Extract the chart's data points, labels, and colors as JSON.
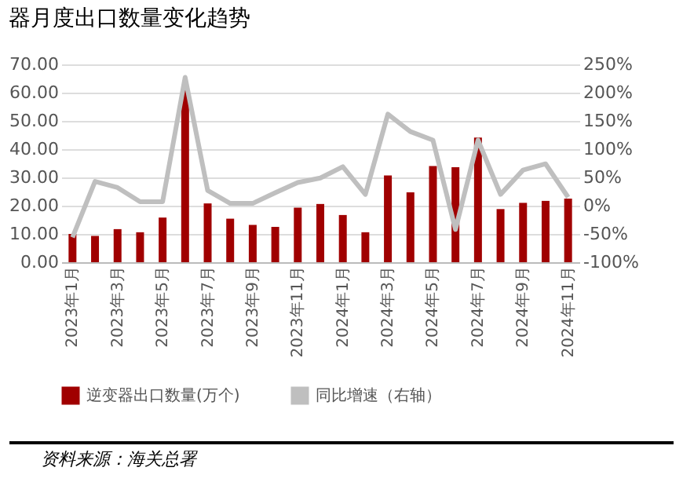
{
  "chart_data": {
    "type": "bar",
    "title": "器月度出口数量变化趋势",
    "categories": [
      "2023年1月",
      null,
      "2023年3月",
      null,
      "2023年5月",
      null,
      "2023年7月",
      null,
      "2023年9月",
      null,
      "2023年11月",
      null,
      "2024年1月",
      null,
      "2024年3月",
      null,
      "2024年5月",
      null,
      "2024年7月",
      null,
      "2024年9月",
      null,
      "2024年11月"
    ],
    "series": [
      {
        "name": "逆变器出口数量(万个)",
        "color": "#a00000",
        "values": [
          10.0,
          9.3,
          11.7,
          10.6,
          15.8,
          61,
          20.8,
          15.4,
          13.2,
          12.5,
          19.3,
          20.6,
          16.7,
          10.6,
          30.7,
          24.7,
          34.0,
          33.6,
          44.1,
          18.8,
          21.0,
          21.7,
          22.5
        ]
      },
      {
        "name": "同比增速（右轴）",
        "type": "line",
        "axis": "y2",
        "color": "#bfbfbf",
        "values": [
          -56,
          43,
          32,
          7,
          7,
          227,
          27,
          4,
          4,
          23,
          41,
          49,
          69,
          20,
          162,
          131,
          116,
          -42,
          116,
          20,
          63,
          74,
          15
        ]
      }
    ],
    "ylim": [
      0,
      70
    ],
    "yticks": [
      {
        "value": 0,
        "label": "0.00"
      },
      {
        "value": 10,
        "label": "10.00"
      },
      {
        "value": 20,
        "label": "20.00"
      },
      {
        "value": 30,
        "label": "30.00"
      },
      {
        "value": 40,
        "label": "40.00"
      },
      {
        "value": 50,
        "label": "50.00"
      },
      {
        "value": 60,
        "label": "60.00"
      },
      {
        "value": 70,
        "label": "70.00"
      }
    ],
    "y2lim": [
      -100,
      250
    ],
    "y2ticks": [
      {
        "value": -100,
        "label": "-100%"
      },
      {
        "value": -50,
        "label": "-50%"
      },
      {
        "value": 0,
        "label": "0%"
      },
      {
        "value": 50,
        "label": "50%"
      },
      {
        "value": 100,
        "label": "100%"
      },
      {
        "value": 150,
        "label": "150%"
      },
      {
        "value": 200,
        "label": "200%"
      },
      {
        "value": 250,
        "label": "250%"
      }
    ],
    "grid": "y",
    "legend": "bottom",
    "annotations": [
      "资料来源：海关总署"
    ]
  }
}
